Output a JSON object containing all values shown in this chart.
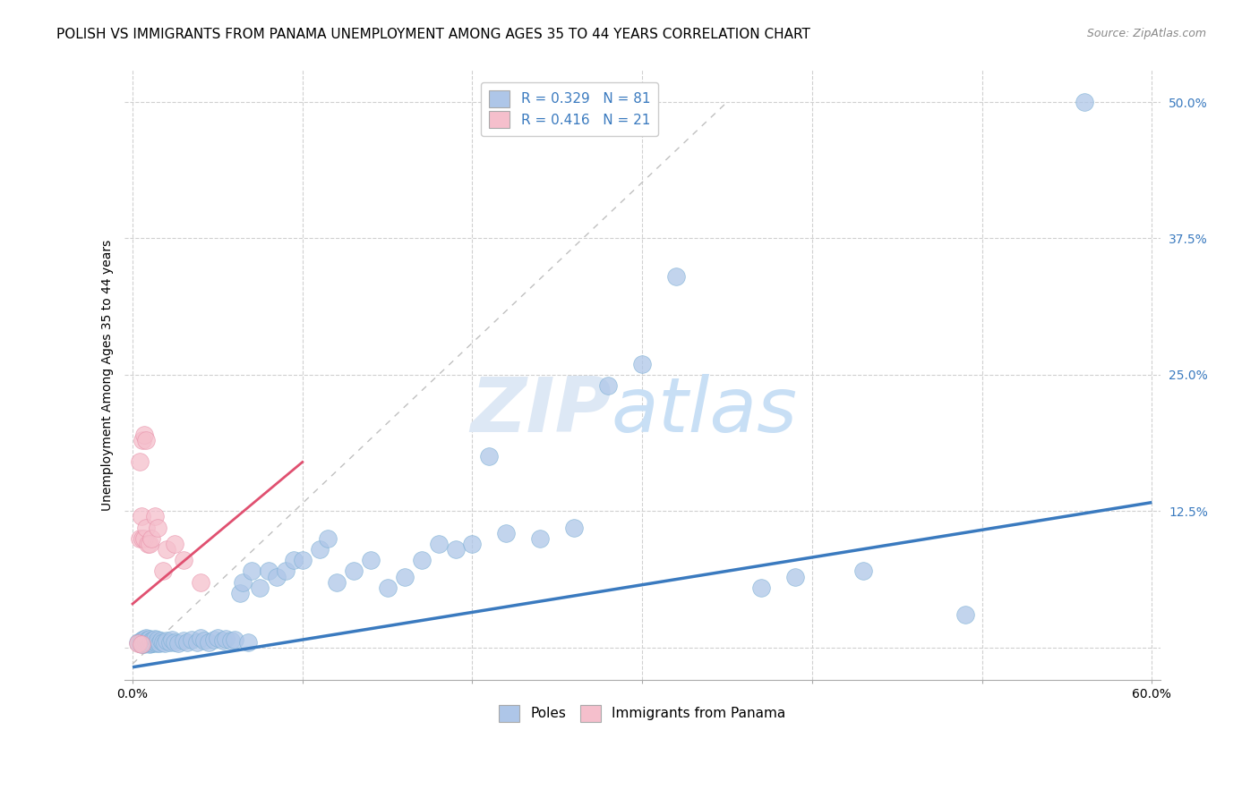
{
  "title": "POLISH VS IMMIGRANTS FROM PANAMA UNEMPLOYMENT AMONG AGES 35 TO 44 YEARS CORRELATION CHART",
  "source": "Source: ZipAtlas.com",
  "ylabel": "Unemployment Among Ages 35 to 44 years",
  "xlim": [
    -0.005,
    0.605
  ],
  "ylim": [
    -0.03,
    0.53
  ],
  "yticks": [
    0.0,
    0.125,
    0.25,
    0.375,
    0.5
  ],
  "yticklabels": [
    "",
    "12.5%",
    "25.0%",
    "37.5%",
    "50.0%"
  ],
  "xtick_positions": [
    0.0,
    0.1,
    0.2,
    0.3,
    0.4,
    0.5,
    0.6
  ],
  "poles_R": 0.329,
  "poles_N": 81,
  "panama_R": 0.416,
  "panama_N": 21,
  "poles_color": "#aec6e8",
  "poles_edge_color": "#7aafd4",
  "poles_line_color": "#3a7abf",
  "panama_color": "#f5bfcc",
  "panama_edge_color": "#e890a8",
  "panama_line_color": "#e05070",
  "poles_x": [
    0.003,
    0.004,
    0.005,
    0.005,
    0.006,
    0.006,
    0.007,
    0.007,
    0.007,
    0.008,
    0.008,
    0.008,
    0.009,
    0.009,
    0.01,
    0.01,
    0.01,
    0.011,
    0.011,
    0.012,
    0.012,
    0.013,
    0.013,
    0.014,
    0.015,
    0.015,
    0.016,
    0.017,
    0.018,
    0.019,
    0.02,
    0.022,
    0.023,
    0.025,
    0.027,
    0.03,
    0.032,
    0.035,
    0.038,
    0.04,
    0.042,
    0.045,
    0.048,
    0.05,
    0.053,
    0.055,
    0.058,
    0.06,
    0.063,
    0.065,
    0.068,
    0.07,
    0.075,
    0.08,
    0.085,
    0.09,
    0.095,
    0.1,
    0.11,
    0.115,
    0.12,
    0.13,
    0.14,
    0.15,
    0.16,
    0.17,
    0.18,
    0.19,
    0.2,
    0.21,
    0.22,
    0.24,
    0.26,
    0.28,
    0.3,
    0.32,
    0.37,
    0.39,
    0.43,
    0.49,
    0.56
  ],
  "poles_y": [
    0.005,
    0.004,
    0.003,
    0.006,
    0.004,
    0.007,
    0.003,
    0.005,
    0.008,
    0.004,
    0.006,
    0.009,
    0.004,
    0.007,
    0.003,
    0.005,
    0.008,
    0.004,
    0.006,
    0.004,
    0.007,
    0.005,
    0.008,
    0.004,
    0.005,
    0.007,
    0.004,
    0.006,
    0.005,
    0.004,
    0.006,
    0.005,
    0.007,
    0.005,
    0.004,
    0.006,
    0.005,
    0.007,
    0.005,
    0.009,
    0.006,
    0.005,
    0.007,
    0.009,
    0.006,
    0.008,
    0.006,
    0.007,
    0.05,
    0.06,
    0.005,
    0.07,
    0.055,
    0.07,
    0.065,
    0.07,
    0.08,
    0.08,
    0.09,
    0.1,
    0.06,
    0.07,
    0.08,
    0.055,
    0.065,
    0.08,
    0.095,
    0.09,
    0.095,
    0.175,
    0.105,
    0.1,
    0.11,
    0.24,
    0.26,
    0.34,
    0.055,
    0.065,
    0.07,
    0.03,
    0.5
  ],
  "panama_x": [
    0.003,
    0.004,
    0.004,
    0.005,
    0.005,
    0.006,
    0.006,
    0.007,
    0.007,
    0.008,
    0.008,
    0.009,
    0.01,
    0.011,
    0.013,
    0.015,
    0.018,
    0.02,
    0.025,
    0.03,
    0.04
  ],
  "panama_y": [
    0.004,
    0.1,
    0.17,
    0.003,
    0.12,
    0.19,
    0.1,
    0.195,
    0.1,
    0.19,
    0.11,
    0.095,
    0.095,
    0.1,
    0.12,
    0.11,
    0.07,
    0.09,
    0.095,
    0.08,
    0.06
  ],
  "poles_trend_x": [
    0.0,
    0.6
  ],
  "poles_trend_y": [
    -0.018,
    0.133
  ],
  "panama_trend_x": [
    0.0,
    0.1
  ],
  "panama_trend_y": [
    0.04,
    0.17
  ],
  "watermark_zip": "ZIP",
  "watermark_atlas": "atlas",
  "background_color": "#ffffff",
  "grid_color": "#d0d0d0",
  "title_fontsize": 11,
  "axis_label_fontsize": 10,
  "tick_fontsize": 10,
  "legend_fontsize": 11
}
